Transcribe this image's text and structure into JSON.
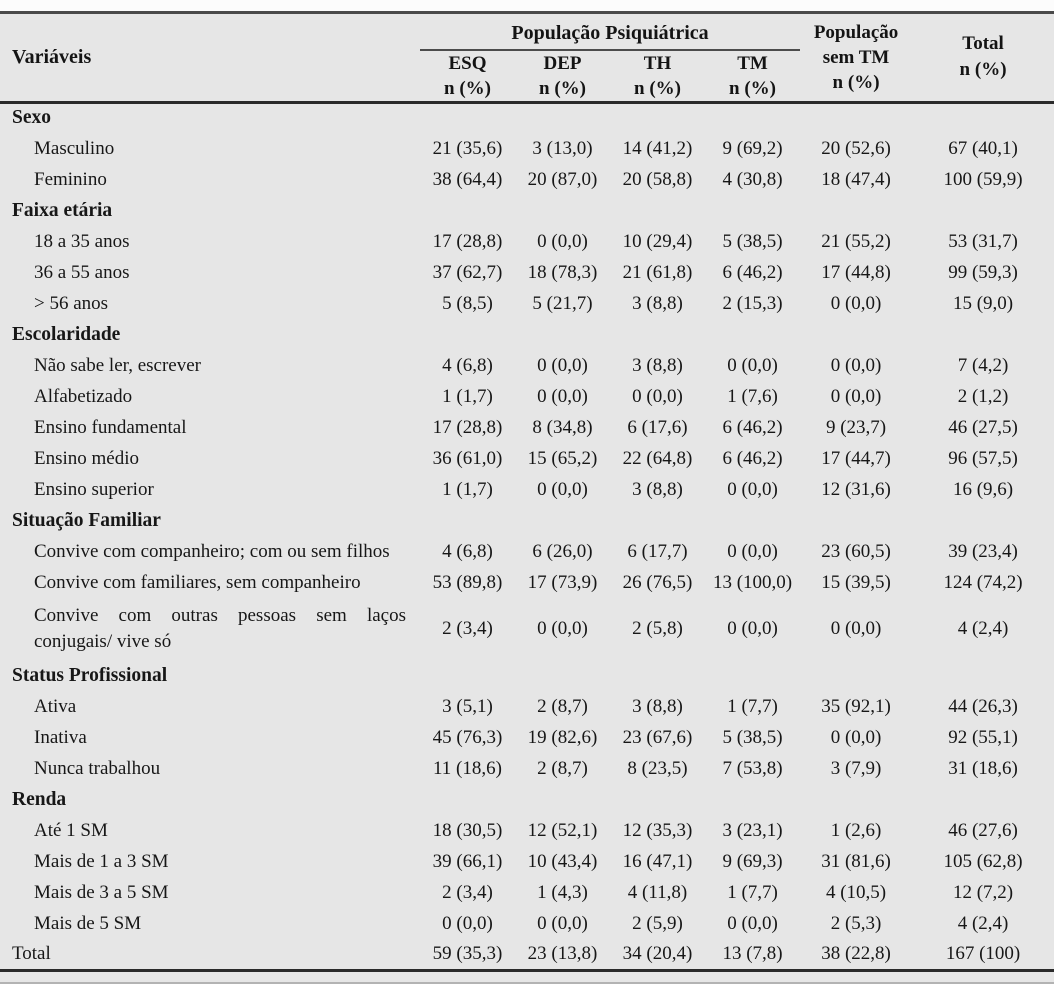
{
  "page": {
    "background_color": "#e6e6e6",
    "text_color": "#171717",
    "rule_dark_color": "#2a2a2a",
    "rule_mid_color": "#4a4a4a",
    "rule_light_color": "#b3b3b3"
  },
  "table": {
    "header": {
      "variaveis": "Variáveis",
      "group": "População Psiquiátrica",
      "cols": [
        {
          "name": "ESQ",
          "sub": "n (%)"
        },
        {
          "name": "DEP",
          "sub": "n (%)"
        },
        {
          "name": "TH",
          "sub": "n (%)"
        },
        {
          "name": "TM",
          "sub": "n (%)"
        }
      ],
      "sem_tm": {
        "line1": "População",
        "line2": "sem TM",
        "line3": "n (%)"
      },
      "total": {
        "line1": "Total",
        "line2": "n (%)"
      }
    },
    "rows": [
      {
        "type": "section",
        "label": "Sexo"
      },
      {
        "type": "data",
        "label": "Masculino",
        "values": [
          "21 (35,6)",
          "3 (13,0)",
          "14 (41,2)",
          "9 (69,2)",
          "20 (52,6)",
          "67 (40,1)"
        ]
      },
      {
        "type": "data",
        "label": "Feminino",
        "values": [
          "38 (64,4)",
          "20 (87,0)",
          "20 (58,8)",
          "4 (30,8)",
          "18 (47,4)",
          "100 (59,9)"
        ]
      },
      {
        "type": "section",
        "label": "Faixa etária"
      },
      {
        "type": "data",
        "label": "18 a 35 anos",
        "values": [
          "17 (28,8)",
          "0 (0,0)",
          "10 (29,4)",
          "5 (38,5)",
          "21 (55,2)",
          "53 (31,7)"
        ]
      },
      {
        "type": "data",
        "label": "36 a 55 anos",
        "values": [
          "37 (62,7)",
          "18 (78,3)",
          "21 (61,8)",
          "6 (46,2)",
          "17 (44,8)",
          "99 (59,3)"
        ]
      },
      {
        "type": "data",
        "label": "> 56 anos",
        "values": [
          "5 (8,5)",
          "5 (21,7)",
          "3 (8,8)",
          "2 (15,3)",
          "0 (0,0)",
          "15 (9,0)"
        ]
      },
      {
        "type": "section",
        "label": "Escolaridade"
      },
      {
        "type": "data",
        "label": "Não sabe ler, escrever",
        "values": [
          "4 (6,8)",
          "0 (0,0)",
          "3 (8,8)",
          "0 (0,0)",
          "0 (0,0)",
          "7 (4,2)"
        ]
      },
      {
        "type": "data",
        "label": "Alfabetizado",
        "values": [
          "1 (1,7)",
          "0 (0,0)",
          "0 (0,0)",
          "1 (7,6)",
          "0 (0,0)",
          "2 (1,2)"
        ]
      },
      {
        "type": "data",
        "label": "Ensino fundamental",
        "values": [
          "17 (28,8)",
          "8 (34,8)",
          "6 (17,6)",
          "6 (46,2)",
          "9 (23,7)",
          "46 (27,5)"
        ]
      },
      {
        "type": "data",
        "label": "Ensino médio",
        "values": [
          "36 (61,0)",
          "15 (65,2)",
          "22 (64,8)",
          "6 (46,2)",
          "17 (44,7)",
          "96 (57,5)"
        ]
      },
      {
        "type": "data",
        "label": "Ensino superior",
        "values": [
          "1 (1,7)",
          "0 (0,0)",
          "3 (8,8)",
          "0 (0,0)",
          "12 (31,6)",
          "16 (9,6)"
        ]
      },
      {
        "type": "section",
        "label": "Situação Familiar"
      },
      {
        "type": "data",
        "label": "Convive com companheiro; com ou sem filhos",
        "values": [
          "4 (6,8)",
          "6 (26,0)",
          "6 (17,7)",
          "0 (0,0)",
          "23 (60,5)",
          "39 (23,4)"
        ]
      },
      {
        "type": "data",
        "label": "Convive com familiares, sem companheiro",
        "values": [
          "53 (89,8)",
          "17 (73,9)",
          "26 (76,5)",
          "13 (100,0)",
          "15 (39,5)",
          "124 (74,2)"
        ]
      },
      {
        "type": "data",
        "wrap": true,
        "label": "Convive com outras pessoas sem laços conjugais/ vive só",
        "values": [
          "2 (3,4)",
          "0 (0,0)",
          "2 (5,8)",
          "0 (0,0)",
          "0 (0,0)",
          "4 (2,4)"
        ]
      },
      {
        "type": "section",
        "label": "Status Profissional"
      },
      {
        "type": "data",
        "label": "Ativa",
        "values": [
          "3 (5,1)",
          "2 (8,7)",
          "3 (8,8)",
          "1 (7,7)",
          "35 (92,1)",
          "44 (26,3)"
        ]
      },
      {
        "type": "data",
        "label": "Inativa",
        "values": [
          "45 (76,3)",
          "19 (82,6)",
          "23 (67,6)",
          "5 (38,5)",
          "0 (0,0)",
          "92 (55,1)"
        ]
      },
      {
        "type": "data",
        "label": "Nunca trabalhou",
        "values": [
          "11 (18,6)",
          "2 (8,7)",
          "8 (23,5)",
          "7 (53,8)",
          "3 (7,9)",
          "31 (18,6)"
        ]
      },
      {
        "type": "section",
        "label": "Renda"
      },
      {
        "type": "data",
        "label": "Até 1 SM",
        "values": [
          "18 (30,5)",
          "12 (52,1)",
          "12 (35,3)",
          "3 (23,1)",
          "1 (2,6)",
          "46 (27,6)"
        ]
      },
      {
        "type": "data",
        "label": "Mais de 1 a 3 SM",
        "values": [
          "39 (66,1)",
          "10 (43,4)",
          "16 (47,1)",
          "9 (69,3)",
          "31 (81,6)",
          "105 (62,8)"
        ]
      },
      {
        "type": "data",
        "label": "Mais de 3 a 5 SM",
        "values": [
          "2 (3,4)",
          "1 (4,3)",
          "4 (11,8)",
          "1 (7,7)",
          "4 (10,5)",
          "12 (7,2)"
        ]
      },
      {
        "type": "data",
        "label": "Mais de 5 SM",
        "values": [
          "0 (0,0)",
          "0 (0,0)",
          "2 (5,9)",
          "0 (0,0)",
          "2 (5,3)",
          "4 (2,4)"
        ]
      },
      {
        "type": "total",
        "label": "Total",
        "values": [
          "59 (35,3)",
          "23 (13,8)",
          "34 (20,4)",
          "13 (7,8)",
          "38 (22,8)",
          "167 (100)"
        ]
      }
    ]
  }
}
